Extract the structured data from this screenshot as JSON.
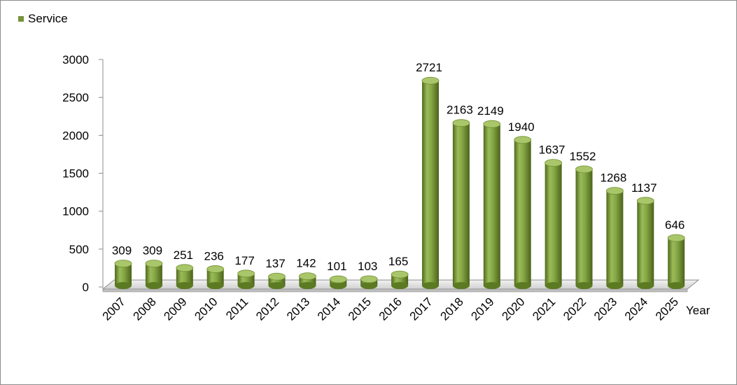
{
  "chart_data": {
    "type": "bar",
    "style": "3d-cylinder",
    "title": "",
    "xlabel": "Year",
    "ylabel": "",
    "categories": [
      "2007",
      "2008",
      "2009",
      "2010",
      "2011",
      "2012",
      "2013",
      "2014",
      "2015",
      "2016",
      "2017",
      "2018",
      "2019",
      "2020",
      "2021",
      "2022",
      "2023",
      "2024",
      "2025"
    ],
    "series": [
      {
        "name": "Service",
        "color": "#77933c",
        "values": [
          309,
          309,
          251,
          236,
          177,
          137,
          142,
          101,
          103,
          165,
          2721,
          2163,
          2149,
          1940,
          1637,
          1552,
          1268,
          1137,
          646
        ]
      }
    ],
    "ylim": [
      0,
      3000
    ],
    "yticks": [
      0,
      500,
      1000,
      1500,
      2000,
      2500,
      3000
    ],
    "grid": false,
    "legend": "top-left",
    "data_labels": true
  }
}
